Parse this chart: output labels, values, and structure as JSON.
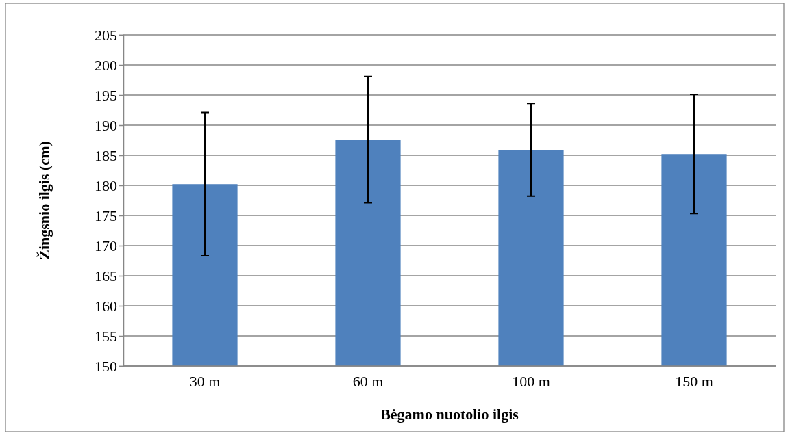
{
  "chart_data": {
    "type": "bar",
    "xlabel": "Bėgamo nuotolio ilgis",
    "ylabel": "Žingsnio ilgis (cm)",
    "categories": [
      "30 m",
      "60 m",
      "100 m",
      "150 m"
    ],
    "values": [
      180.2,
      187.6,
      185.9,
      185.2
    ],
    "errors": [
      11.9,
      10.5,
      7.7,
      9.9
    ],
    "color": "#4f81bd",
    "ylim": [
      150,
      205
    ],
    "yticks": [
      150,
      155,
      160,
      165,
      170,
      175,
      180,
      185,
      190,
      195,
      200,
      205
    ],
    "grid": "y"
  }
}
